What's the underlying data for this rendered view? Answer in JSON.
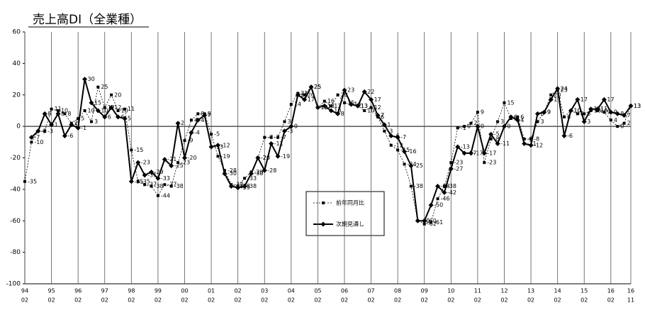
{
  "chart_data": {
    "type": "line",
    "title": "売上高DI（全業種）",
    "categories": [
      "94",
      null,
      null,
      null,
      "95",
      null,
      null,
      null,
      "96",
      null,
      null,
      null,
      "97",
      null,
      null,
      null,
      "98",
      null,
      null,
      null,
      "99",
      null,
      null,
      null,
      "00",
      null,
      null,
      null,
      "01",
      null,
      null,
      null,
      "02",
      null,
      null,
      null,
      "03",
      null,
      null,
      null,
      "04",
      null,
      null,
      null,
      "05",
      null,
      null,
      null,
      "06",
      null,
      null,
      null,
      "07",
      null,
      null,
      null,
      "08",
      null,
      null,
      null,
      "09",
      null,
      null,
      null,
      "10",
      null,
      null,
      null,
      "11",
      null,
      null,
      null,
      "12",
      null,
      null,
      null,
      "13",
      null,
      null,
      null,
      "14",
      null,
      null,
      null,
      "15",
      null,
      null,
      null,
      "16",
      null,
      null,
      "16"
    ],
    "category_months": [
      "02",
      null,
      null,
      null,
      "02",
      null,
      null,
      null,
      "02",
      null,
      null,
      null,
      "02",
      null,
      null,
      null,
      "02",
      null,
      null,
      null,
      "02",
      null,
      null,
      null,
      "02",
      null,
      null,
      null,
      "02",
      null,
      null,
      null,
      "02",
      null,
      null,
      null,
      "02",
      null,
      null,
      null,
      "02",
      null,
      null,
      null,
      "02",
      null,
      null,
      null,
      "02",
      null,
      null,
      null,
      "02",
      null,
      null,
      null,
      "02",
      null,
      null,
      null,
      "02",
      null,
      null,
      null,
      "02",
      null,
      null,
      null,
      "02",
      null,
      null,
      null,
      "02",
      null,
      null,
      null,
      "02",
      null,
      null,
      null,
      "02",
      null,
      null,
      null,
      "02",
      null,
      null,
      null,
      "02",
      null,
      null,
      "11"
    ],
    "series": [
      {
        "name": "前年同月比",
        "color": "#000000",
        "dashed": true,
        "marker": "square",
        "values": [
          -35,
          -10,
          -3,
          -3,
          11,
          10,
          8,
          2,
          5,
          10,
          3,
          25,
          12,
          20,
          10,
          11,
          -15,
          -35,
          -37,
          -38,
          -44,
          -37,
          -38,
          -23,
          -9,
          4,
          8,
          8,
          -5,
          -19,
          -28,
          -37,
          -38,
          -33,
          -29,
          -20,
          -7,
          -7,
          -7,
          3,
          14,
          21,
          20,
          25,
          12,
          16,
          13,
          20,
          15,
          14,
          13,
          10,
          12,
          6,
          -3,
          -12,
          -15,
          -24,
          -38,
          -60,
          -62,
          -61,
          -46,
          -38,
          -23,
          -1,
          0,
          2,
          9,
          -23,
          -8,
          3,
          15,
          5,
          6,
          -8,
          -8,
          3,
          9,
          20,
          23,
          6,
          10,
          8,
          8,
          10,
          10,
          9,
          4,
          0,
          2,
          13
        ]
      },
      {
        "name": "次期見通し",
        "color": "#000000",
        "dashed": false,
        "marker": "diamond",
        "values": [
          null,
          -7,
          -3,
          8,
          1,
          8,
          -6,
          1,
          -1,
          30,
          15,
          10,
          6,
          12,
          6,
          5,
          -35,
          -23,
          -31,
          -29,
          -33,
          -21,
          -25,
          2,
          -20,
          -4,
          4,
          7,
          -13,
          -12,
          -30,
          -38,
          -39,
          -38,
          -30,
          -20,
          -28,
          -11,
          -19,
          -3,
          0,
          20,
          17,
          25,
          12,
          13,
          10,
          8,
          23,
          14,
          13,
          22,
          17,
          7,
          1,
          -6,
          -7,
          -16,
          -25,
          -60,
          -60,
          -50,
          -38,
          -42,
          -27,
          -13,
          -17,
          -17,
          0,
          -17,
          -5,
          -11,
          0,
          6,
          4,
          -11,
          -12,
          8,
          9,
          17,
          24,
          -6,
          10,
          17,
          3,
          11,
          11,
          17,
          9,
          8,
          7,
          13
        ]
      }
    ],
    "ylim": [
      -100,
      60
    ],
    "yticks": [
      -100,
      -80,
      -60,
      -40,
      -20,
      0,
      20,
      40,
      60
    ],
    "xgrid": true,
    "zero_line": true,
    "legend": "center"
  }
}
